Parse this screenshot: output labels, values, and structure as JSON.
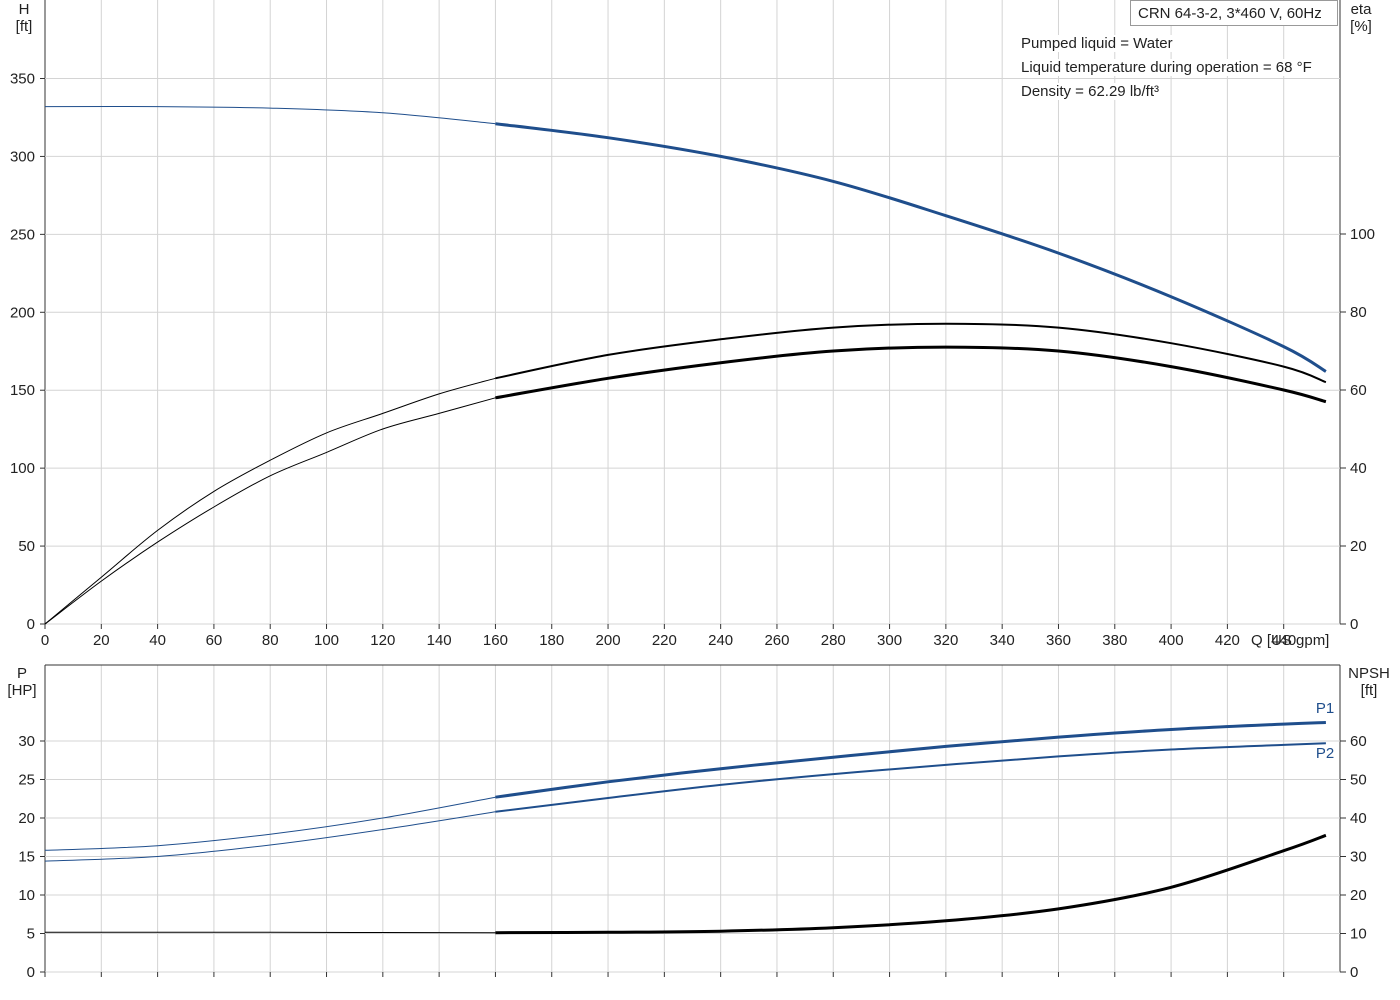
{
  "info": {
    "pump": "CRN 64-3-2, 3*460 V, 60Hz",
    "liquid": "Pumped liquid = Water",
    "temperature": "Liquid temperature during operation = 68 °F",
    "density": "Density = 62.29 lb/ft³"
  },
  "chart_data": [
    {
      "type": "line",
      "panel": "top",
      "xlabel": "Q [US gpm]",
      "xlim": [
        0,
        460
      ],
      "x_ticks": [
        "0",
        "20",
        "40",
        "60",
        "80",
        "100",
        "120",
        "140",
        "160",
        "180",
        "200",
        "220",
        "240",
        "260",
        "280",
        "300",
        "320",
        "340",
        "360",
        "380",
        "400",
        "420",
        "440"
      ],
      "ylabel_left": [
        "H",
        "[ft]"
      ],
      "ylim_left": [
        0,
        350
      ],
      "y_ticks_left": [
        "0",
        "50",
        "100",
        "150",
        "200",
        "250",
        "300",
        "350"
      ],
      "ylabel_right": [
        "eta",
        "[%]"
      ],
      "ylim_right": [
        0,
        100
      ],
      "y_ticks_right": [
        "0",
        "20",
        "40",
        "60",
        "80",
        "100"
      ],
      "grid": true,
      "series": [
        {
          "id": "head",
          "axis": "left",
          "color": "#1f4e8c",
          "x": [
            0,
            40,
            80,
            120,
            160,
            200,
            240,
            280,
            320,
            360,
            400,
            440,
            455
          ],
          "y": [
            332,
            332,
            331,
            328,
            321,
            312,
            300,
            284,
            262,
            238,
            210,
            178,
            162
          ]
        },
        {
          "id": "eta1",
          "axis": "right",
          "color": "#000000",
          "x": [
            0,
            20,
            40,
            60,
            80,
            100,
            120,
            140,
            160,
            200,
            240,
            280,
            320,
            360,
            400,
            440,
            455
          ],
          "y": [
            0,
            12,
            24,
            34,
            42,
            49,
            54,
            59,
            63,
            69,
            73,
            76,
            77,
            76,
            72,
            66,
            62
          ]
        },
        {
          "id": "eta2",
          "axis": "right",
          "color": "#000000",
          "x": [
            0,
            20,
            40,
            60,
            80,
            100,
            120,
            140,
            160,
            200,
            240,
            280,
            320,
            360,
            400,
            440,
            455
          ],
          "y": [
            0,
            11,
            21,
            30,
            38,
            44,
            50,
            54,
            58,
            63,
            67,
            70,
            71,
            70,
            66,
            60,
            57
          ]
        }
      ]
    },
    {
      "type": "line",
      "panel": "bottom",
      "xlim": [
        0,
        460
      ],
      "ylabel_left": [
        "P",
        "[HP]"
      ],
      "ylim_left": [
        0,
        35
      ],
      "y_ticks_left": [
        "0",
        "5",
        "10",
        "15",
        "20",
        "25",
        "30"
      ],
      "ylabel_right": [
        "NPSH",
        "[ft]"
      ],
      "ylim_right": [
        0,
        70
      ],
      "y_ticks_right": [
        "0",
        "10",
        "20",
        "30",
        "40",
        "50",
        "60"
      ],
      "grid": true,
      "series": [
        {
          "id": "p1",
          "name": "P1",
          "axis": "left",
          "color": "#1f4e8c",
          "x": [
            0,
            40,
            80,
            120,
            160,
            200,
            240,
            280,
            320,
            360,
            400,
            440,
            455
          ],
          "y": [
            15.8,
            16.4,
            17.9,
            20.0,
            22.7,
            24.7,
            26.4,
            27.9,
            29.3,
            30.5,
            31.5,
            32.2,
            32.4
          ]
        },
        {
          "id": "p2",
          "name": "P2",
          "axis": "left",
          "color": "#1f4e8c",
          "x": [
            0,
            40,
            80,
            120,
            160,
            200,
            240,
            280,
            320,
            360,
            400,
            440,
            455
          ],
          "y": [
            14.4,
            15.0,
            16.5,
            18.5,
            20.8,
            22.6,
            24.3,
            25.7,
            26.9,
            28.0,
            28.9,
            29.5,
            29.7
          ]
        },
        {
          "id": "npsh",
          "axis": "right",
          "color": "#000000",
          "x": [
            0,
            80,
            160,
            200,
            240,
            280,
            320,
            360,
            400,
            440,
            455
          ],
          "y": [
            10.3,
            10.3,
            10.2,
            10.3,
            10.6,
            11.5,
            13.3,
            16.4,
            22.0,
            31.5,
            35.5
          ]
        }
      ]
    }
  ]
}
